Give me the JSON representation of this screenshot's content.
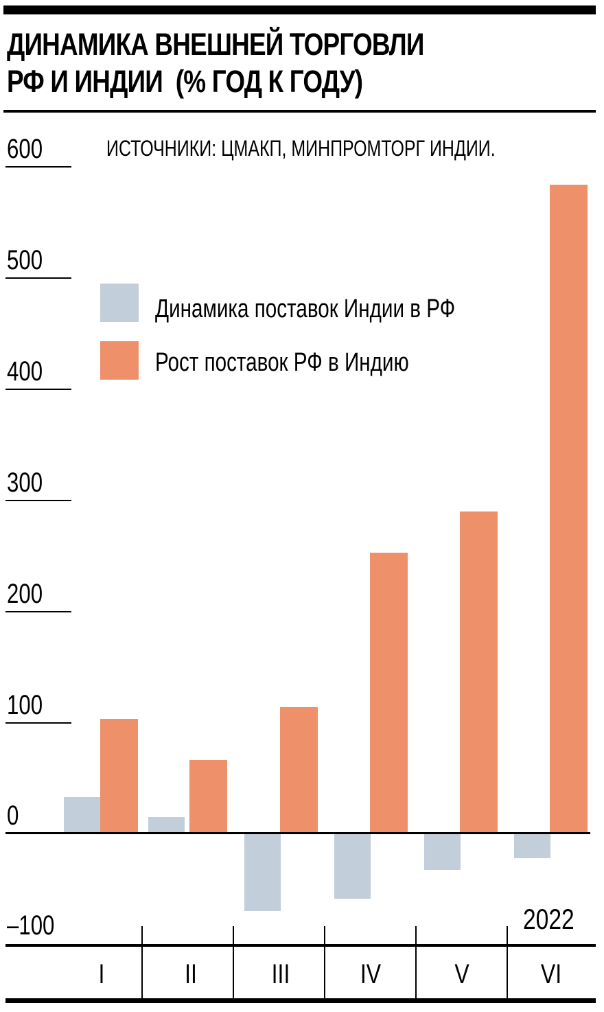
{
  "header": {
    "title_line1": "ДИНАМИКА ВНЕШНЕЙ ТОРГОВЛИ",
    "title_line2": "РФ И ИНДИИ  (% ГОД К ГОДУ)",
    "source": "ИСТОЧНИКИ: ЦМАКП, МИНПРОМТОРГ ИНДИИ."
  },
  "axis": {
    "y_ticks": [
      "600",
      "500",
      "400",
      "300",
      "200",
      "100",
      "0",
      "–100"
    ],
    "x_ticks": [
      "I",
      "II",
      "III",
      "IV",
      "V",
      "VI"
    ],
    "year_label": "2022"
  },
  "legend": {
    "items": [
      {
        "label": "Динамика поставок Индии в РФ",
        "color": "#c2ceda"
      },
      {
        "label": "Рост поставок РФ в Индию",
        "color": "#ee906a"
      }
    ]
  },
  "colors": {
    "india_to_rf": "#c2ceda",
    "rf_to_india": "#ee906a",
    "axis": "#000000"
  },
  "chart_data": {
    "type": "bar",
    "title": "ДИНАМИКА ВНЕШНЕЙ ТОРГОВЛИ РФ И ИНДИИ (% ГОД К ГОДУ)",
    "subtitle": "ИСТОЧНИКИ: ЦМАКП, МИНПРОМТОРГ ИНДИИ.",
    "categories": [
      "I",
      "II",
      "III",
      "IV",
      "V",
      "VI"
    ],
    "xlabel": "2022",
    "ylabel": "% год к году",
    "ylim": [
      -100,
      600
    ],
    "yticks": [
      -100,
      0,
      100,
      200,
      300,
      400,
      500,
      600
    ],
    "grid": false,
    "legend_position": "upper left",
    "series": [
      {
        "name": "Динамика поставок Индии в РФ",
        "color": "#c2ceda",
        "values": [
          33,
          15,
          -70,
          -59,
          -33,
          -22
        ]
      },
      {
        "name": "Рост поставок РФ в Индию",
        "color": "#ee906a",
        "values": [
          103,
          66,
          114,
          253,
          290,
          584
        ]
      }
    ]
  }
}
